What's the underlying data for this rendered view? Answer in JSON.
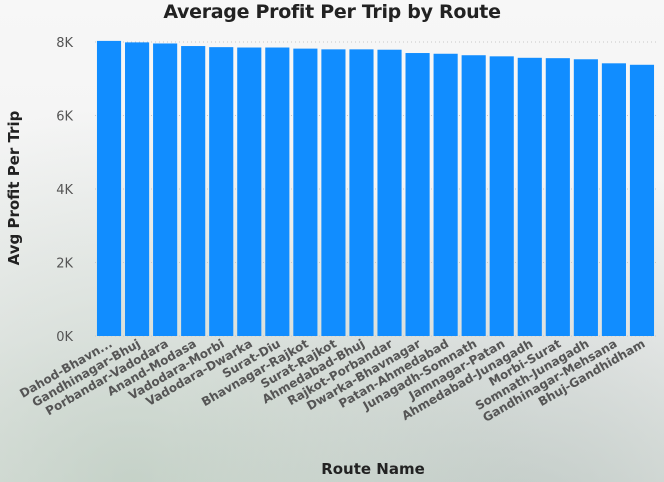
{
  "chart_data": {
    "type": "bar",
    "title": "Average Profit Per Trip by Route",
    "xlabel": "Route Name",
    "ylabel": "Avg Profit Per Trip",
    "ylim": [
      0,
      8000
    ],
    "yticks": [
      {
        "value": 0,
        "label": "0K"
      },
      {
        "value": 2000,
        "label": "2K"
      },
      {
        "value": 4000,
        "label": "4K"
      },
      {
        "value": 6000,
        "label": "6K"
      },
      {
        "value": 8000,
        "label": "8K"
      }
    ],
    "categories": [
      "Dahod-Bhavn...",
      "Gandhinagar-Bhuj",
      "Porbandar-Vadodara",
      "Anand-Modasa",
      "Vadodara-Morbi",
      "Vadodara-Dwarka",
      "Surat-Diu",
      "Bhavnagar-Rajkot",
      "Surat-Rajkot",
      "Ahmedabad-Bhuj",
      "Rajkot-Porbandar",
      "Dwarka-Bhavnagar",
      "Patan-Ahmedabad",
      "Junagadh-Somnath",
      "Jamnagar-Patan",
      "Ahmedabad-Junagadh",
      "Morbi-Surat",
      "Somnath-Junagadh",
      "Gandhinagar-Mehsana",
      "Bhuj-Gandhidham"
    ],
    "values": [
      8030,
      7990,
      7960,
      7890,
      7860,
      7850,
      7850,
      7820,
      7800,
      7800,
      7790,
      7700,
      7680,
      7640,
      7610,
      7570,
      7560,
      7530,
      7420,
      7380
    ],
    "bar_color": "#118dff",
    "grid": true,
    "legend": "none"
  }
}
